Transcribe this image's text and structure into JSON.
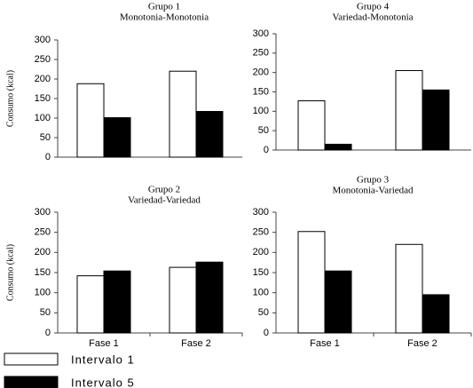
{
  "chart_data": [
    {
      "type": "bar",
      "title": "Grupo 1",
      "subtitle": "Monotonia-Monotonia",
      "ylabel": "Consumo (kcal)",
      "categories": [
        null,
        null
      ],
      "series": [
        {
          "name": "Intervalo 1",
          "color": "#ffffff",
          "values": [
            188,
            220
          ]
        },
        {
          "name": "Intervalo 5",
          "color": "#000000",
          "values": [
            101,
            117
          ]
        }
      ],
      "ylim": [
        0,
        300
      ],
      "yticks": [
        0,
        50,
        100,
        150,
        200,
        250,
        300
      ]
    },
    {
      "type": "bar",
      "title": "Grupo 4",
      "subtitle": "Variedad-Monotonia",
      "categories": [
        null,
        null
      ],
      "series": [
        {
          "color": "#ffffff",
          "values": [
            127,
            205
          ]
        },
        {
          "color": "#000000",
          "values": [
            15,
            155
          ]
        }
      ],
      "ylim": [
        0,
        300
      ],
      "yticks": [
        0,
        50,
        100,
        150,
        200,
        250,
        300
      ]
    },
    {
      "type": "bar",
      "title": "Grupo 2",
      "subtitle": "Variedad-Variedad",
      "ylabel": "Consumo (kcal)",
      "categories": [
        "Fase 1",
        "Fase 2"
      ],
      "series": [
        {
          "color": "#ffffff",
          "values": [
            142,
            163
          ]
        },
        {
          "color": "#000000",
          "values": [
            154,
            176
          ]
        }
      ],
      "ylim": [
        0,
        300
      ],
      "yticks": [
        0,
        50,
        100,
        150,
        200,
        250,
        300
      ]
    },
    {
      "type": "bar",
      "title": "Grupo 3",
      "subtitle": "Monotonia-Variedad",
      "categories": [
        "Fase 1",
        "Fase 2"
      ],
      "series": [
        {
          "color": "#ffffff",
          "values": [
            252,
            220
          ]
        },
        {
          "color": "#000000",
          "values": [
            154,
            95
          ]
        }
      ],
      "ylim": [
        0,
        300
      ],
      "yticks": [
        0,
        50,
        100,
        150,
        200,
        250,
        300
      ]
    }
  ]
}
